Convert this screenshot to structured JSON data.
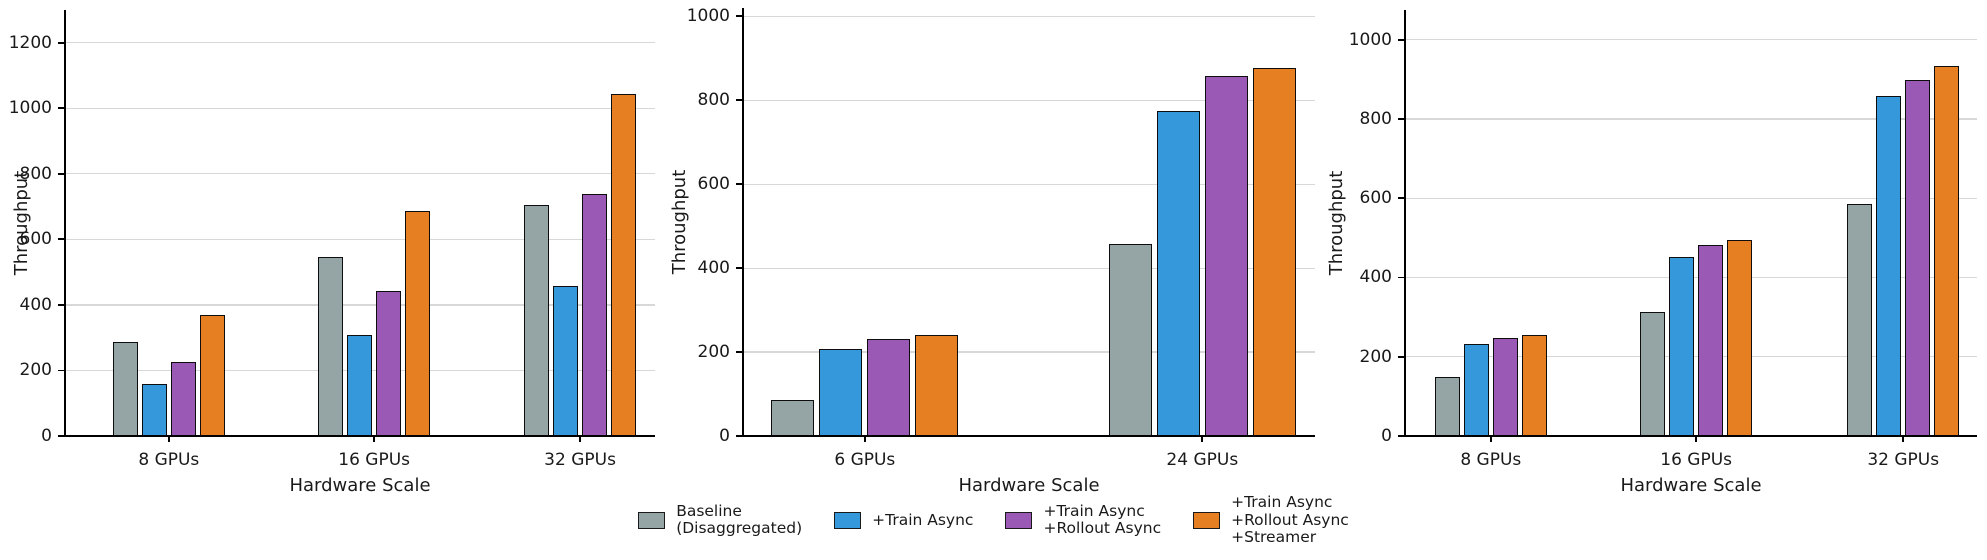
{
  "figure": {
    "background": "#ffffff",
    "text_color": "#1a1a1a",
    "gridline_color": "#d8d8d8"
  },
  "legend": {
    "position": "bottom-center",
    "items": [
      {
        "label": "Baseline\n(Disaggregated)",
        "color": "#95a5a6"
      },
      {
        "label": "+Train Async",
        "color": "#3498db"
      },
      {
        "label": "+Train Async\n+Rollout Async",
        "color": "#9b59b6"
      },
      {
        "label": "+Train Async\n+Rollout Async\n+Streamer",
        "color": "#e67e22"
      }
    ]
  },
  "chart_data": [
    {
      "type": "bar",
      "title": "",
      "xlabel": "Hardware Scale",
      "ylabel": "Throughput",
      "categories": [
        "8 GPUs",
        "16 GPUs",
        "32 GPUs"
      ],
      "series": [
        {
          "name": "Baseline (Disaggregated)",
          "color": "#95a5a6",
          "values": [
            288,
            547,
            704
          ]
        },
        {
          "name": "+Train Async",
          "color": "#3498db",
          "values": [
            160,
            308,
            458
          ]
        },
        {
          "name": "+Train Async +Rollout Async",
          "color": "#9b59b6",
          "values": [
            227,
            441,
            739
          ]
        },
        {
          "name": "+Train Async +Rollout Async +Streamer",
          "color": "#e67e22",
          "values": [
            368,
            688,
            1043
          ]
        }
      ],
      "yticks": [
        0,
        200,
        400,
        600,
        800,
        1000,
        1200
      ],
      "ylim": [
        0,
        1300
      ],
      "grid": "horizontal",
      "legend_shown": false
    },
    {
      "type": "bar",
      "title": "",
      "xlabel": "Hardware Scale",
      "ylabel": "Throughput",
      "categories": [
        "6 GPUs",
        "24 GPUs"
      ],
      "series": [
        {
          "name": "Baseline (Disaggregated)",
          "color": "#95a5a6",
          "values": [
            86,
            458
          ]
        },
        {
          "name": "+Train Async",
          "color": "#3498db",
          "values": [
            207,
            775
          ]
        },
        {
          "name": "+Train Async +Rollout Async",
          "color": "#9b59b6",
          "values": [
            232,
            858
          ]
        },
        {
          "name": "+Train Async +Rollout Async +Streamer",
          "color": "#e67e22",
          "values": [
            240,
            877
          ]
        }
      ],
      "yticks": [
        0,
        200,
        400,
        600,
        800,
        1000
      ],
      "ylim": [
        0,
        1020
      ],
      "grid": "horizontal",
      "legend_shown": false
    },
    {
      "type": "bar",
      "title": "",
      "xlabel": "Hardware Scale",
      "ylabel": "Throughput",
      "categories": [
        "8 GPUs",
        "16 GPUs",
        "32 GPUs"
      ],
      "series": [
        {
          "name": "Baseline (Disaggregated)",
          "color": "#95a5a6",
          "values": [
            149,
            312,
            585
          ]
        },
        {
          "name": "+Train Async",
          "color": "#3498db",
          "values": [
            233,
            452,
            858
          ]
        },
        {
          "name": "+Train Async +Rollout Async",
          "color": "#9b59b6",
          "values": [
            248,
            482,
            898
          ]
        },
        {
          "name": "+Train Async +Rollout Async +Streamer",
          "color": "#e67e22",
          "values": [
            256,
            494,
            933
          ]
        }
      ],
      "yticks": [
        0,
        200,
        400,
        600,
        800,
        1000
      ],
      "ylim": [
        0,
        1075
      ],
      "grid": "horizontal",
      "legend_shown": false
    }
  ]
}
